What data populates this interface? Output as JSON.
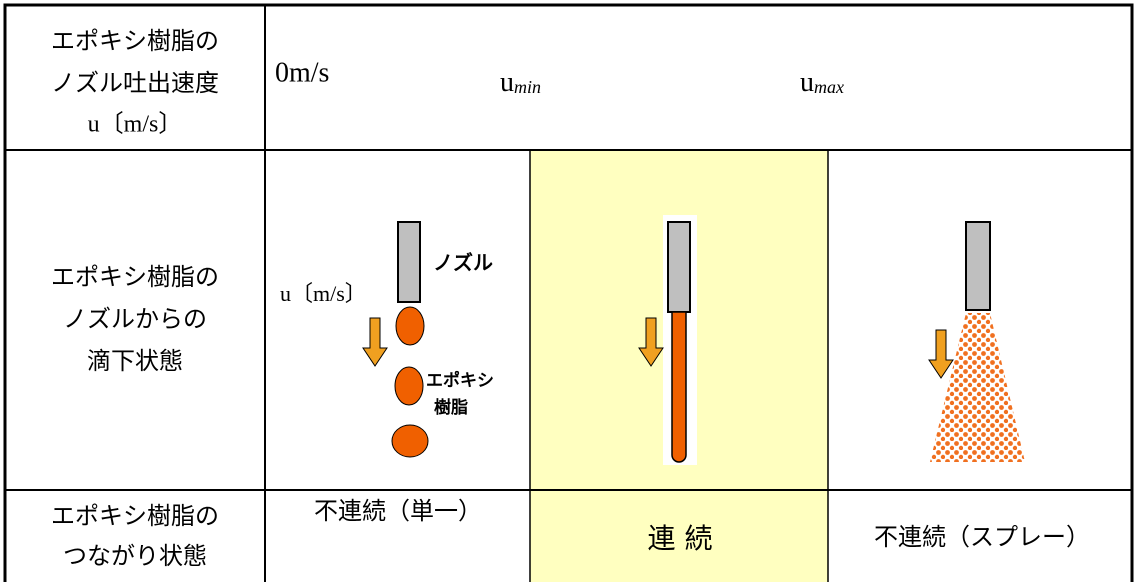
{
  "rows": [
    {
      "label": [
        "エポキシ樹脂の",
        "ノズル吐出速度",
        "u〔m/s〕"
      ],
      "speeds": [
        {
          "base": "0m/s"
        },
        {
          "base": "u",
          "sub": "min"
        },
        {
          "base": "u",
          "sub": "max"
        }
      ]
    },
    {
      "label": [
        "エポキシ樹脂の",
        "ノズルからの",
        "滴下状態"
      ],
      "annotations": {
        "nozzle": "ノズル",
        "speed": "u〔m/s〕",
        "resin": [
          "エポキシ",
          "樹脂"
        ]
      }
    },
    {
      "label": [
        "エポキシ樹脂の",
        "つながり状態"
      ],
      "cells": [
        "不連続（単一）",
        "連 続",
        "不連続（スプレー）"
      ]
    }
  ]
}
